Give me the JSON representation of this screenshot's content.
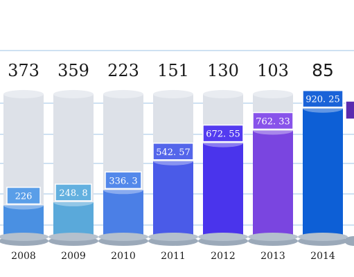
{
  "chart_data": {
    "type": "bar",
    "categories": [
      "2008",
      "2009",
      "2010",
      "2011",
      "2012",
      "2013",
      "2014"
    ],
    "series": [
      {
        "values": [
          373,
          359,
          223,
          151,
          130,
          103,
          85
        ]
      },
      {
        "values": [
          226,
          248.8,
          336.3,
          542.57,
          672.55,
          762.33,
          920.25
        ]
      }
    ],
    "value_labels": [
      "226",
      "248. 8",
      "336. 3",
      "542. 57",
      "672. 55",
      "762. 33",
      "920. 25"
    ],
    "ylim": [
      0,
      1500
    ],
    "grid": true,
    "colors": {
      "bars": [
        "#4a90e2",
        "#5aa9da",
        "#4b7fe6",
        "#4a5be8",
        "#4a34ec",
        "#7a45e0",
        "#0d5fd6"
      ],
      "label_boxes": [
        "#5a9ee8",
        "#63b0df",
        "#5388ea",
        "#5466ea",
        "#533bf0",
        "#8853ea",
        "#1a63d8"
      ],
      "ghost": "#dde1e8",
      "gridline": "#9cc3e6",
      "base": "#9ba9b9"
    }
  }
}
